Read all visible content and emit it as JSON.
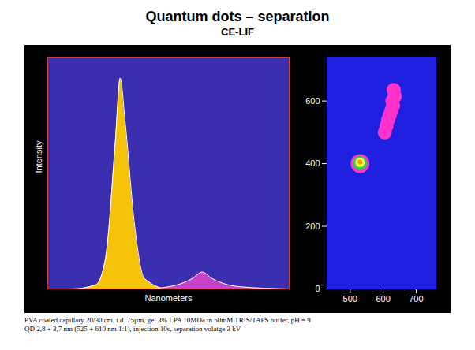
{
  "title": "Quantum dots – separation",
  "subtitle": "CE-LIF",
  "caption": [
    "PVA coated capillary 20/30 cm, i.d. 75µm, gel 3% LPA 10MDa in 50mM TRIS/TAPS buffer,  pH = 9",
    "QD 2,8 + 3,7  nm (525 + 610 nm 1:1), injection 10s, separation volatge 3 kV"
  ],
  "chart_data": [
    {
      "type": "area",
      "x_label": "Nanometers",
      "y_label": "Intensity",
      "x": [
        450,
        475,
        500,
        510,
        520,
        525,
        530,
        540,
        550,
        575,
        600,
        610,
        620,
        650,
        700
      ],
      "series": [
        {
          "color": "#ffcc00",
          "values": [
            0,
            0,
            2,
            15,
            70,
            100,
            80,
            30,
            5,
            0,
            0,
            0,
            0,
            0,
            0
          ]
        },
        {
          "color": "#cc44cc",
          "values": [
            0,
            0,
            0,
            0,
            0,
            0,
            0,
            0,
            0,
            1,
            5,
            8,
            5,
            1,
            0
          ]
        }
      ],
      "xlim": [
        450,
        700
      ],
      "ylim": [
        0,
        110
      ],
      "tick_labels": false
    },
    {
      "type": "scatter",
      "x_label": null,
      "y_label": null,
      "series": [
        {
          "color": "#ff33cc",
          "x": [
            605,
            610,
            615,
            620,
            625,
            630,
            628,
            635,
            632
          ],
          "y": [
            500,
            520,
            540,
            555,
            570,
            585,
            600,
            615,
            635
          ]
        },
        {
          "color": "#ff33cc",
          "x": [
            530
          ],
          "y": [
            400
          ]
        },
        {
          "color": "#33cc55",
          "x": [
            530
          ],
          "y": [
            402
          ]
        },
        {
          "color": "#ffff33",
          "x": [
            530
          ],
          "y": [
            404
          ]
        },
        {
          "color": "#ff9900",
          "x": [
            530
          ],
          "y": [
            405
          ]
        }
      ],
      "xlim": [
        430,
        760
      ],
      "ylim": [
        0,
        740
      ],
      "xticks": [
        500,
        600,
        700
      ],
      "yticks": [
        0,
        200,
        400,
        600
      ]
    }
  ]
}
